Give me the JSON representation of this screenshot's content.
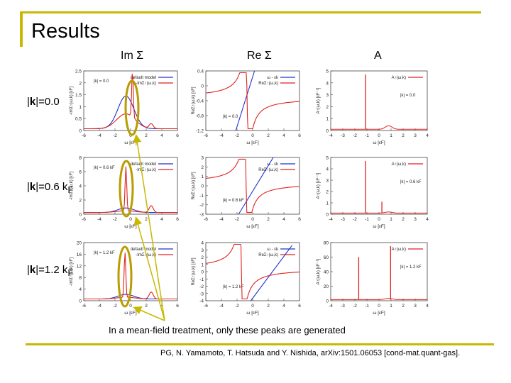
{
  "slide": {
    "title": "Results",
    "columns": [
      "Im Σ",
      "Re Σ",
      "A"
    ],
    "rows": [
      {
        "k_bold": "k",
        "pre": "|",
        "post": "|=0.0",
        "sub": ""
      },
      {
        "k_bold": "k",
        "pre": "|",
        "post": "|=0.6 k",
        "sub": "F"
      },
      {
        "k_bold": "k",
        "pre": "|",
        "post": "|=1.2 k",
        "sub": "F"
      }
    ],
    "annotation": "In a mean-field treatment, only these peaks are generated",
    "citation": "PG, N. Yamamoto, T. Hatsuda and Y. Nishida, arXiv:1501.06053 [cond-mat.quant-gas].",
    "colors": {
      "accent": "#c9b800",
      "series_red": "#e0221f",
      "series_blue": "#2233cc"
    }
  },
  "panels": [
    {
      "name": "im-sigma-k0",
      "ylabel": "-ImΣ↑(ω,k) [εF]",
      "xlabel": "ω [εF]",
      "xticks": [
        "-6",
        "-4",
        "-2",
        "0",
        "2",
        "4",
        "6"
      ],
      "yticks": [
        "2.5",
        "2",
        "1.5",
        "1",
        "0.5",
        "0"
      ],
      "legend": [
        "default model",
        "-ImΣ↑(ω,k)"
      ],
      "kbox": "|k| = 0.0"
    },
    {
      "name": "re-sigma-k0",
      "ylabel": "ReΣ↑(ω,k) [εF]",
      "xlabel": "ω [εF]",
      "xticks": [
        "-6",
        "-4",
        "-2",
        "0",
        "2",
        "4",
        "6"
      ],
      "yticks": [
        "0.4",
        "0",
        "-0.4",
        "-0.8",
        "-1.2"
      ],
      "legend": [
        "ω - εk",
        "ReΣ↑(ω,k)"
      ],
      "kbox": "|k| = 0.0"
    },
    {
      "name": "a-k0",
      "ylabel": "A↑(ω,k) [εF⁻¹]",
      "xlabel": "ω [εF]",
      "xticks": [
        "-4",
        "-3",
        "-2",
        "-1",
        "0",
        "1",
        "2",
        "3",
        "4"
      ],
      "yticks": [
        "5",
        "4",
        "3",
        "2",
        "1",
        "0"
      ],
      "legend": [
        "A↑(ω,k)"
      ],
      "kbox": "|k| = 0.0"
    },
    {
      "name": "im-sigma-k06",
      "ylabel": "-ImΣ↑(ω,k) [εF]",
      "xlabel": "ω [εF]",
      "xticks": [
        "-6",
        "-4",
        "-2",
        "0",
        "2",
        "4",
        "6"
      ],
      "yticks": [
        "8",
        "6",
        "4",
        "2",
        "0"
      ],
      "legend": [
        "default model",
        "-ImΣ↑(ω,k)"
      ],
      "kbox": "|k| = 0.6 kF"
    },
    {
      "name": "re-sigma-k06",
      "ylabel": "ReΣ↑(ω,k) [εF]",
      "xlabel": "ω [εF]",
      "xticks": [
        "-6",
        "-4",
        "-2",
        "0",
        "2",
        "4",
        "6"
      ],
      "yticks": [
        "3",
        "2",
        "1",
        "0",
        "-1",
        "-2",
        "-3"
      ],
      "legend": [
        "ω - εk",
        "ReΣ↑(ω,k)"
      ],
      "kbox": "|k| = 0.6 kF"
    },
    {
      "name": "a-k06",
      "ylabel": "A↑(ω,k) [εF⁻¹]",
      "xlabel": "ω [εF]",
      "xticks": [
        "-4",
        "-3",
        "-2",
        "-1",
        "0",
        "1",
        "2",
        "3",
        "4"
      ],
      "yticks": [
        "5",
        "4",
        "3",
        "2",
        "1",
        "0"
      ],
      "legend": [
        "A↑(ω,k)"
      ],
      "kbox": "|k| = 0.6 kF"
    },
    {
      "name": "im-sigma-k12",
      "ylabel": "-ImΣ↑(ω,k) [εF]",
      "xlabel": "ω [εF]",
      "xticks": [
        "-6",
        "-4",
        "-2",
        "0",
        "2",
        "4",
        "6"
      ],
      "yticks": [
        "20",
        "16",
        "12",
        "8",
        "4",
        "0"
      ],
      "legend": [
        "default model",
        "-ImΣ↑(ω,k)"
      ],
      "kbox": "|k| = 1.2 kF"
    },
    {
      "name": "re-sigma-k12",
      "ylabel": "ReΣ↑(ω,k) [εF]",
      "xlabel": "ω [εF]",
      "xticks": [
        "-6",
        "-4",
        "-2",
        "0",
        "2",
        "4",
        "6"
      ],
      "yticks": [
        "4",
        "3",
        "2",
        "1",
        "0",
        "-1",
        "-2",
        "-3",
        "-4"
      ],
      "legend": [
        "ω - εk",
        "ReΣ↑(ω,k)"
      ],
      "kbox": "|k| = 1.2 kF"
    },
    {
      "name": "a-k12",
      "ylabel": "A↑(ω,k) [εF⁻¹]",
      "xlabel": "ω [εF]",
      "xticks": [
        "-4",
        "-3",
        "-2",
        "-1",
        "0",
        "1",
        "2",
        "3",
        "4"
      ],
      "yticks": [
        "80",
        "60",
        "40",
        "20",
        "0"
      ],
      "legend": [
        "A↑(ω,k)"
      ],
      "kbox": "|k| = 1.2 kF"
    }
  ]
}
